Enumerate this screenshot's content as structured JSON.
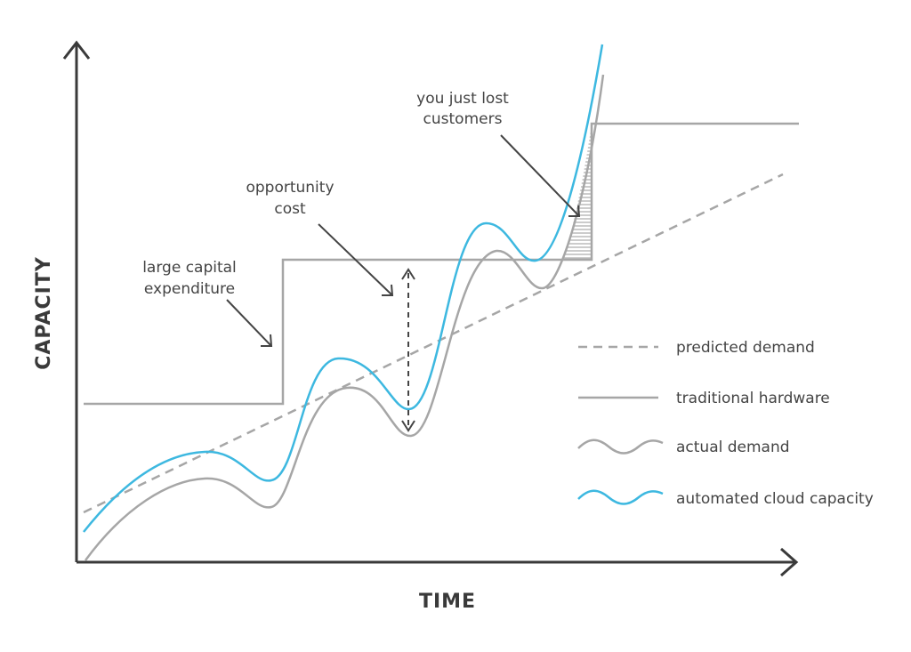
{
  "axes": {
    "y_title": "CAPACITY",
    "x_title": "TIME"
  },
  "annotations": {
    "capital_line1": "large capital",
    "capital_line2": "expenditure",
    "opportunity_line1": "opportunity",
    "opportunity_line2": "cost",
    "lost_line1": "you just lost",
    "lost_line2": "customers"
  },
  "legend": {
    "predicted": "predicted demand",
    "traditional": "traditional hardware",
    "actual": "actual demand",
    "cloud": "automated cloud capacity"
  },
  "colors": {
    "axis": "#3a3a3a",
    "grey_line": "#a6a6a6",
    "cloud": "#3db8e0",
    "arrow": "#444444",
    "hatch": "#9a9a9a"
  }
}
